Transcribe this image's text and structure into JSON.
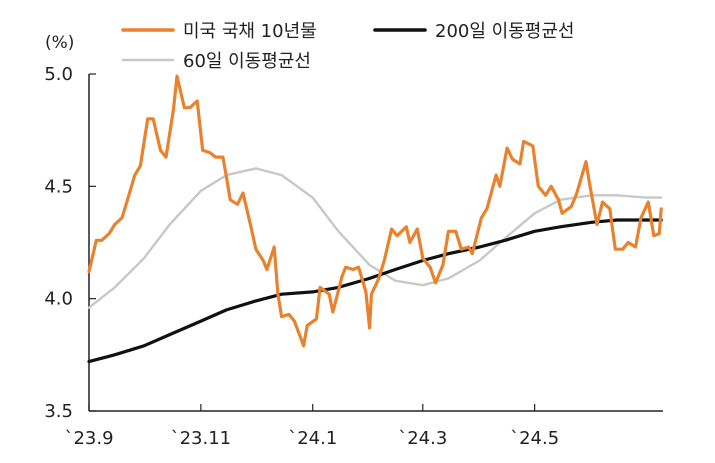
{
  "chart_data": {
    "type": "line",
    "title": "",
    "xlabel": "",
    "ylabel": "(%)",
    "ylim": [
      3.5,
      5.0
    ],
    "yticks": [
      "5.0",
      "4.5",
      "4.0",
      "3.5"
    ],
    "xticks": [
      "`23.9",
      "`23.11",
      "`24.1",
      "`24.3",
      "`24.5"
    ],
    "legend_placement": "top",
    "grid": false,
    "series": [
      {
        "name": "미국 국채 10년물",
        "color": "#e8822e",
        "points": [
          [
            "2023-09-01",
            4.12
          ],
          [
            "2023-09-05",
            4.26
          ],
          [
            "2023-09-08",
            4.26
          ],
          [
            "2023-09-12",
            4.29
          ],
          [
            "2023-09-15",
            4.33
          ],
          [
            "2023-09-19",
            4.36
          ],
          [
            "2023-09-22",
            4.44
          ],
          [
            "2023-09-26",
            4.55
          ],
          [
            "2023-09-29",
            4.59
          ],
          [
            "2023-10-03",
            4.8
          ],
          [
            "2023-10-06",
            4.8
          ],
          [
            "2023-10-10",
            4.66
          ],
          [
            "2023-10-13",
            4.63
          ],
          [
            "2023-10-17",
            4.84
          ],
          [
            "2023-10-19",
            4.99
          ],
          [
            "2023-10-23",
            4.85
          ],
          [
            "2023-10-26",
            4.85
          ],
          [
            "2023-10-30",
            4.88
          ],
          [
            "2023-11-02",
            4.66
          ],
          [
            "2023-11-06",
            4.65
          ],
          [
            "2023-11-09",
            4.63
          ],
          [
            "2023-11-13",
            4.63
          ],
          [
            "2023-11-15",
            4.54
          ],
          [
            "2023-11-17",
            4.44
          ],
          [
            "2023-11-21",
            4.42
          ],
          [
            "2023-11-24",
            4.47
          ],
          [
            "2023-11-28",
            4.33
          ],
          [
            "2023-12-01",
            4.22
          ],
          [
            "2023-12-05",
            4.17
          ],
          [
            "2023-12-07",
            4.13
          ],
          [
            "2023-12-11",
            4.23
          ],
          [
            "2023-12-13",
            4.02
          ],
          [
            "2023-12-15",
            3.92
          ],
          [
            "2023-12-19",
            3.93
          ],
          [
            "2023-12-22",
            3.9
          ],
          [
            "2023-12-27",
            3.79
          ],
          [
            "2023-12-29",
            3.88
          ],
          [
            "2024-01-03",
            3.91
          ],
          [
            "2024-01-05",
            4.05
          ],
          [
            "2024-01-10",
            4.02
          ],
          [
            "2024-01-12",
            3.94
          ],
          [
            "2024-01-17",
            4.1
          ],
          [
            "2024-01-19",
            4.14
          ],
          [
            "2024-01-23",
            4.13
          ],
          [
            "2024-01-26",
            4.14
          ],
          [
            "2024-01-30",
            4.03
          ],
          [
            "2024-02-01",
            3.87
          ],
          [
            "2024-02-02",
            4.02
          ],
          [
            "2024-02-06",
            4.09
          ],
          [
            "2024-02-09",
            4.17
          ],
          [
            "2024-02-13",
            4.31
          ],
          [
            "2024-02-16",
            4.28
          ],
          [
            "2024-02-21",
            4.32
          ],
          [
            "2024-02-23",
            4.25
          ],
          [
            "2024-02-27",
            4.31
          ],
          [
            "2024-03-01",
            4.18
          ],
          [
            "2024-03-05",
            4.14
          ],
          [
            "2024-03-08",
            4.07
          ],
          [
            "2024-03-12",
            4.15
          ],
          [
            "2024-03-15",
            4.3
          ],
          [
            "2024-03-19",
            4.3
          ],
          [
            "2024-03-22",
            4.22
          ],
          [
            "2024-03-26",
            4.23
          ],
          [
            "2024-03-28",
            4.2
          ],
          [
            "2024-04-02",
            4.36
          ],
          [
            "2024-04-05",
            4.4
          ],
          [
            "2024-04-10",
            4.55
          ],
          [
            "2024-04-12",
            4.5
          ],
          [
            "2024-04-16",
            4.67
          ],
          [
            "2024-04-19",
            4.62
          ],
          [
            "2024-04-23",
            4.6
          ],
          [
            "2024-04-25",
            4.7
          ],
          [
            "2024-04-30",
            4.68
          ],
          [
            "2024-05-03",
            4.5
          ],
          [
            "2024-05-07",
            4.46
          ],
          [
            "2024-05-10",
            4.5
          ],
          [
            "2024-05-14",
            4.44
          ],
          [
            "2024-05-16",
            4.38
          ],
          [
            "2024-05-21",
            4.41
          ],
          [
            "2024-05-24",
            4.47
          ],
          [
            "2024-05-29",
            4.61
          ],
          [
            "2024-05-31",
            4.51
          ],
          [
            "2024-06-04",
            4.33
          ],
          [
            "2024-06-07",
            4.43
          ],
          [
            "2024-06-11",
            4.4
          ],
          [
            "2024-06-14",
            4.22
          ],
          [
            "2024-06-18",
            4.22
          ],
          [
            "2024-06-21",
            4.25
          ],
          [
            "2024-06-25",
            4.23
          ],
          [
            "2024-06-28",
            4.36
          ],
          [
            "2024-07-02",
            4.43
          ],
          [
            "2024-07-05",
            4.28
          ],
          [
            "2024-07-08",
            4.29
          ],
          [
            "2024-07-09",
            4.4
          ]
        ]
      },
      {
        "name": "200일 이동평균선",
        "color": "#111111",
        "points": [
          [
            "2023-09-01",
            3.72
          ],
          [
            "2023-09-15",
            3.75
          ],
          [
            "2023-10-01",
            3.79
          ],
          [
            "2023-10-15",
            3.84
          ],
          [
            "2023-11-01",
            3.9
          ],
          [
            "2023-11-15",
            3.95
          ],
          [
            "2023-12-01",
            3.99
          ],
          [
            "2023-12-15",
            4.02
          ],
          [
            "2024-01-01",
            4.03
          ],
          [
            "2024-01-15",
            4.05
          ],
          [
            "2024-02-01",
            4.09
          ],
          [
            "2024-02-15",
            4.13
          ],
          [
            "2024-03-01",
            4.17
          ],
          [
            "2024-03-15",
            4.2
          ],
          [
            "2024-04-01",
            4.23
          ],
          [
            "2024-04-15",
            4.26
          ],
          [
            "2024-05-01",
            4.3
          ],
          [
            "2024-05-15",
            4.32
          ],
          [
            "2024-06-01",
            4.34
          ],
          [
            "2024-06-15",
            4.35
          ],
          [
            "2024-07-01",
            4.35
          ],
          [
            "2024-07-09",
            4.35
          ]
        ]
      },
      {
        "name": "60일 이동평균선",
        "color": "#c8c8c8",
        "points": [
          [
            "2023-09-01",
            3.96
          ],
          [
            "2023-09-15",
            4.05
          ],
          [
            "2023-10-01",
            4.18
          ],
          [
            "2023-10-15",
            4.33
          ],
          [
            "2023-11-01",
            4.48
          ],
          [
            "2023-11-15",
            4.55
          ],
          [
            "2023-12-01",
            4.58
          ],
          [
            "2023-12-15",
            4.55
          ],
          [
            "2024-01-01",
            4.45
          ],
          [
            "2024-01-15",
            4.3
          ],
          [
            "2024-02-01",
            4.15
          ],
          [
            "2024-02-15",
            4.08
          ],
          [
            "2024-03-01",
            4.06
          ],
          [
            "2024-03-15",
            4.09
          ],
          [
            "2024-04-01",
            4.17
          ],
          [
            "2024-04-15",
            4.27
          ],
          [
            "2024-05-01",
            4.38
          ],
          [
            "2024-05-15",
            4.44
          ],
          [
            "2024-06-01",
            4.46
          ],
          [
            "2024-06-15",
            4.46
          ],
          [
            "2024-07-01",
            4.45
          ],
          [
            "2024-07-09",
            4.45
          ]
        ]
      }
    ]
  }
}
